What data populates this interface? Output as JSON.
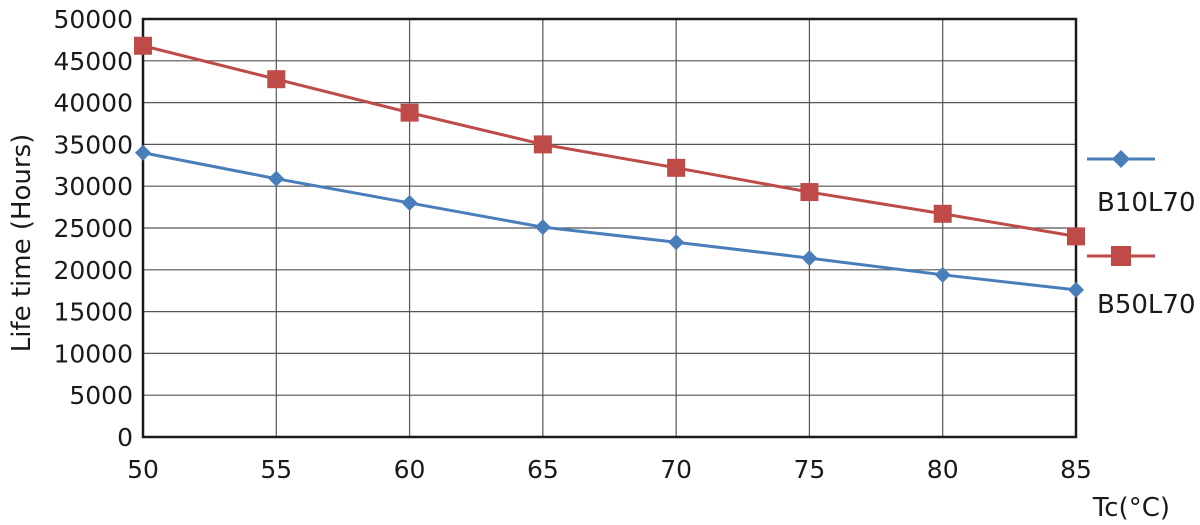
{
  "chart_data": {
    "type": "line",
    "xlabel": "Tc(°C)",
    "ylabel": "Life time (Hours)",
    "x": [
      50,
      55,
      60,
      65,
      70,
      75,
      80,
      85
    ],
    "xlim": [
      50,
      85
    ],
    "ylim": [
      0,
      50000
    ],
    "xticks": [
      50,
      55,
      60,
      65,
      70,
      75,
      80,
      85
    ],
    "yticks": [
      0,
      5000,
      10000,
      15000,
      20000,
      25000,
      30000,
      35000,
      40000,
      45000,
      50000
    ],
    "grid": true,
    "legend_position": "right",
    "series": [
      {
        "name": "B10L70",
        "color": "#4a7ebb",
        "marker": "diamond",
        "values": [
          34000,
          30900,
          28000,
          25100,
          23300,
          21400,
          19400,
          17600
        ]
      },
      {
        "name": "B50L70",
        "color": "#be4b48",
        "marker": "square",
        "values": [
          46800,
          42800,
          38800,
          35000,
          32200,
          29300,
          26700,
          24000
        ]
      }
    ]
  }
}
